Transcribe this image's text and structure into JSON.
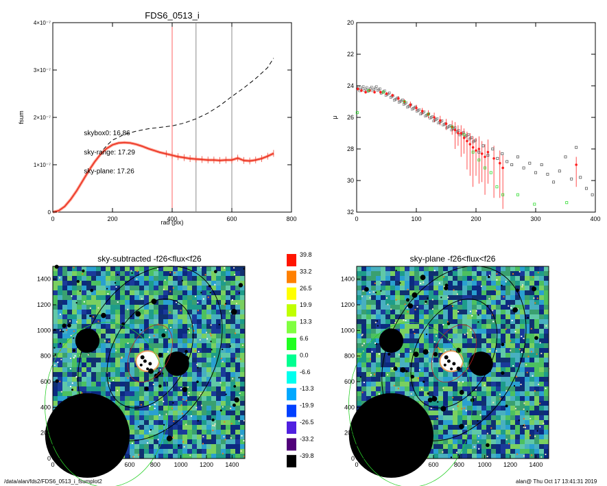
{
  "footer": {
    "path": "/data/alan/fds2/FDS6_0513_i_fsumplot2",
    "stamp": "alan@  Thu Oct 17 13:41:31 2019"
  },
  "chart_data": [
    {
      "type": "line",
      "title": "FDS6_0513_i",
      "xlabel": "rad (pix)",
      "ylabel": "fsum",
      "xlim": [
        0,
        800
      ],
      "ylim": [
        0,
        4e-07
      ],
      "xticks": [
        0,
        200,
        400,
        600,
        800
      ],
      "xtick_labels": [
        "0",
        "200",
        "400",
        "600",
        "800"
      ],
      "yticks": [
        0,
        1e-07,
        2e-07,
        3e-07,
        4e-07
      ],
      "ytick_labels": [
        "0",
        "1×10⁻⁷",
        "2×10⁻⁷",
        "3×10⁻⁷",
        "4×10⁻⁷"
      ],
      "vlines": [
        {
          "x": 400,
          "color": "#ff6060"
        },
        {
          "x": 480,
          "color": "#888888"
        },
        {
          "x": 600,
          "color": "#888888"
        }
      ],
      "annotations": [
        {
          "text": "skybox0: 16.86",
          "color": "#000000",
          "x": 240,
          "y": 1.62e-07
        },
        {
          "text": "sky-range: 17.29",
          "color": "#ff2020",
          "x": 240,
          "y": 1.22e-07
        },
        {
          "text": "sky-plane: 17.26",
          "color": "#33dd33",
          "x": 240,
          "y": 8.2e-08
        }
      ],
      "series": [
        {
          "style": "dashed",
          "color": "#000000",
          "x": [
            0,
            20,
            40,
            60,
            80,
            100,
            120,
            140,
            160,
            180,
            200,
            240,
            280,
            320,
            360,
            400,
            440,
            480,
            520,
            560,
            600,
            640,
            680,
            720,
            740
          ],
          "y": [
            0,
            3e-09,
            1.2e-08,
            2.7e-08,
            4.5e-08,
            6.6e-08,
            8.8e-08,
            1.08e-07,
            1.25e-07,
            1.4e-07,
            1.52e-07,
            1.64e-07,
            1.71e-07,
            1.76e-07,
            1.79e-07,
            1.82e-07,
            1.88e-07,
            1.97e-07,
            2.09e-07,
            2.25e-07,
            2.44e-07,
            2.62e-07,
            2.82e-07,
            3.05e-07,
            3.25e-07
          ]
        },
        {
          "style": "solid",
          "color": "#e83020",
          "x": [
            0,
            20,
            40,
            60,
            80,
            100,
            120,
            140,
            160,
            180,
            200,
            220,
            240,
            260,
            280,
            300,
            320,
            340,
            360,
            380,
            400,
            420,
            440,
            460,
            480,
            500,
            520,
            540,
            560,
            580,
            600,
            620,
            640,
            660,
            680,
            700,
            720,
            740
          ],
          "y": [
            0,
            3e-09,
            1.2e-08,
            2.7e-08,
            4.5e-08,
            6.6e-08,
            8.7e-08,
            1.06e-07,
            1.22e-07,
            1.34e-07,
            1.42e-07,
            1.46e-07,
            1.47e-07,
            1.46e-07,
            1.43e-07,
            1.39e-07,
            1.34e-07,
            1.3e-07,
            1.26e-07,
            1.23e-07,
            1.2e-07,
            1.17e-07,
            1.15e-07,
            1.13e-07,
            1.12e-07,
            1.11e-07,
            1.1e-07,
            1.1e-07,
            1.09e-07,
            1.1e-07,
            1.1e-07,
            1.14e-07,
            1.09e-07,
            1.08e-07,
            1.1e-07,
            1.13e-07,
            1.18e-07,
            1.24e-07
          ]
        }
      ]
    },
    {
      "type": "scatter",
      "title": "",
      "xlabel": "",
      "ylabel": "μ",
      "xlim": [
        0,
        400
      ],
      "ylim": [
        20,
        32
      ],
      "y_inverted": true,
      "xticks": [
        0,
        100,
        200,
        300,
        400
      ],
      "xtick_labels": [
        "0",
        "100",
        "200",
        "300",
        "400"
      ],
      "yticks": [
        20,
        22,
        24,
        26,
        28,
        30,
        32
      ],
      "ytick_labels": [
        "20",
        "22",
        "24",
        "26",
        "28",
        "30",
        "32"
      ],
      "series": [
        {
          "color": "#ff2020",
          "marker": "dot",
          "x": [
            2,
            8,
            15,
            22,
            30,
            40,
            50,
            60,
            70,
            80,
            90,
            100,
            110,
            120,
            130,
            140,
            150,
            160,
            165,
            170,
            175,
            180,
            185,
            190,
            195,
            200,
            205,
            210,
            215,
            220,
            230,
            240,
            245,
            368
          ],
          "y": [
            24.2,
            24.3,
            24.4,
            24.3,
            24.4,
            24.4,
            24.5,
            24.6,
            24.8,
            25.0,
            25.2,
            25.4,
            25.6,
            25.8,
            26.0,
            26.2,
            26.4,
            26.6,
            26.8,
            27.0,
            27.0,
            27.3,
            27.5,
            27.7,
            27.9,
            28.1,
            28.0,
            28.3,
            28.5,
            28.2,
            28.6,
            28.9,
            29.2,
            29.0
          ],
          "err_low": [
            0.1,
            0.1,
            0.1,
            0.1,
            0.1,
            0.1,
            0.1,
            0.1,
            0.15,
            0.15,
            0.2,
            0.2,
            0.2,
            0.25,
            0.3,
            0.3,
            0.4,
            0.5,
            1.2,
            0.8,
            1.5,
            1.0,
            1.8,
            2.0,
            2.5,
            1.6,
            2.2,
            1.8,
            2.4,
            2.0,
            2.5,
            2.2,
            2.6,
            1.4
          ],
          "err_high": [
            0.1,
            0.1,
            0.1,
            0.1,
            0.1,
            0.1,
            0.1,
            0.1,
            0.15,
            0.15,
            0.2,
            0.2,
            0.2,
            0.25,
            0.3,
            0.3,
            0.3,
            0.4,
            0.5,
            0.5,
            0.5,
            0.6,
            0.6,
            0.7,
            0.7,
            0.8,
            0.8,
            0.8,
            0.8,
            0.8,
            0.8,
            0.8,
            0.8,
            0.5
          ]
        },
        {
          "color": "#33dd33",
          "marker": "square",
          "x": [
            1,
            20,
            45,
            80,
            120,
            160,
            180,
            195,
            205,
            215,
            225,
            235,
            245,
            270,
            298,
            352
          ],
          "y": [
            25.7,
            24.3,
            24.4,
            25.0,
            25.8,
            26.6,
            27.1,
            28.2,
            28.7,
            29.2,
            29.5,
            30.4,
            30.9,
            30.9,
            31.5,
            31.4
          ]
        },
        {
          "color": "#444444",
          "marker": "square-open",
          "x": [
            205,
            212,
            220,
            228,
            236,
            244,
            252,
            260,
            270,
            280,
            290,
            300,
            310,
            320,
            330,
            340,
            350,
            360,
            368,
            375,
            385,
            395
          ],
          "y": [
            28.2,
            27.8,
            28.4,
            28.0,
            28.6,
            28.3,
            28.8,
            29.0,
            28.5,
            29.2,
            28.9,
            29.5,
            29.0,
            29.6,
            30.1,
            29.4,
            28.5,
            29.9,
            27.9,
            29.8,
            30.5,
            30.9
          ]
        }
      ]
    },
    {
      "type": "heatmap",
      "title": "sky-subtracted -f26<flux<f26",
      "xlim": [
        0,
        1500
      ],
      "ylim": [
        0,
        1500
      ],
      "xticks": [
        0,
        200,
        400,
        600,
        800,
        1000,
        1200,
        1400
      ],
      "xtick_labels": [
        "0",
        "200",
        "400",
        "600",
        "800",
        "1000",
        "1200",
        "1400"
      ],
      "yticks": [
        0,
        200,
        400,
        600,
        800,
        1000,
        1200,
        1400
      ],
      "ytick_labels": [
        "0",
        "200",
        "400",
        "600",
        "800",
        "1000",
        "1200",
        "1400"
      ],
      "masks": [
        {
          "cx": 270,
          "cy": 180,
          "r": 330
        },
        {
          "cx": 270,
          "cy": 920,
          "r": 95
        },
        {
          "cx": 970,
          "cy": 740,
          "r": 95
        }
      ],
      "saturated_blob": {
        "cx": 740,
        "cy": 760,
        "rx": 90,
        "ry": 80
      }
    },
    {
      "type": "heatmap",
      "title": "sky-plane -f26<flux<f26",
      "xlim": [
        0,
        1500
      ],
      "ylim": [
        0,
        1500
      ],
      "xticks": [
        0,
        200,
        400,
        600,
        800,
        1000,
        1200,
        1400
      ],
      "xtick_labels": [
        "0",
        "200",
        "400",
        "600",
        "800",
        "1000",
        "1200",
        "1400"
      ],
      "yticks": [
        0,
        200,
        400,
        600,
        800,
        1000,
        1200,
        1400
      ],
      "ytick_labels": [
        "0",
        "200",
        "400",
        "600",
        "800",
        "1000",
        "1200",
        "1400"
      ],
      "masks": [
        {
          "cx": 270,
          "cy": 180,
          "r": 330
        },
        {
          "cx": 270,
          "cy": 920,
          "r": 95
        },
        {
          "cx": 970,
          "cy": 740,
          "r": 95
        }
      ],
      "saturated_blob": {
        "cx": 740,
        "cy": 760,
        "rx": 90,
        "ry": 80
      }
    }
  ],
  "colorbar": {
    "levels": [
      {
        "label": "39.8",
        "color": "#ff1500"
      },
      {
        "label": "33.2",
        "color": "#ff8000"
      },
      {
        "label": "26.5",
        "color": "#ffff00"
      },
      {
        "label": "19.9",
        "color": "#c0ff00"
      },
      {
        "label": "13.3",
        "color": "#80ff40"
      },
      {
        "label": "6.6",
        "color": "#20ff20"
      },
      {
        "label": "0.0",
        "color": "#00ff90"
      },
      {
        "label": "-6.6",
        "color": "#00ffee"
      },
      {
        "label": "-13.3",
        "color": "#00a8ff"
      },
      {
        "label": "-19.9",
        "color": "#0040ff"
      },
      {
        "label": "-26.5",
        "color": "#5020e0"
      },
      {
        "label": "-33.2",
        "color": "#50007a"
      },
      {
        "label": "-39.8",
        "color": "#000000"
      }
    ]
  }
}
